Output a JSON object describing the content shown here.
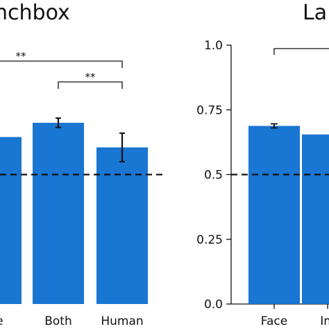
{
  "chart_data": [
    {
      "type": "bar",
      "title": "nchbox",
      "categories": [
        "ge",
        "Both",
        "Human"
      ],
      "values": [
        0.645,
        0.7,
        0.605
      ],
      "errors": [
        0.0,
        0.018,
        0.055
      ],
      "ylim": [
        0,
        1.0
      ],
      "chance_line": 0.5,
      "bar_color": "#1976d2",
      "significance": [
        {
          "from": "ge",
          "to": "Human",
          "label": "**"
        },
        {
          "from": "Both",
          "to": "Human",
          "label": "**"
        }
      ]
    },
    {
      "type": "bar",
      "title": "La",
      "categories": [
        "Face",
        "Im"
      ],
      "values": [
        0.688,
        0.655
      ],
      "errors": [
        0.008,
        0.0
      ],
      "ylim": [
        0,
        1.0
      ],
      "yticks": [
        "0.0",
        "0.25",
        "0.5",
        "0.75",
        "1.0"
      ],
      "chance_line": 0.5,
      "bar_color": "#1976d2",
      "significance": [
        {
          "from": "Face",
          "to": "Im",
          "label": ""
        }
      ]
    }
  ]
}
